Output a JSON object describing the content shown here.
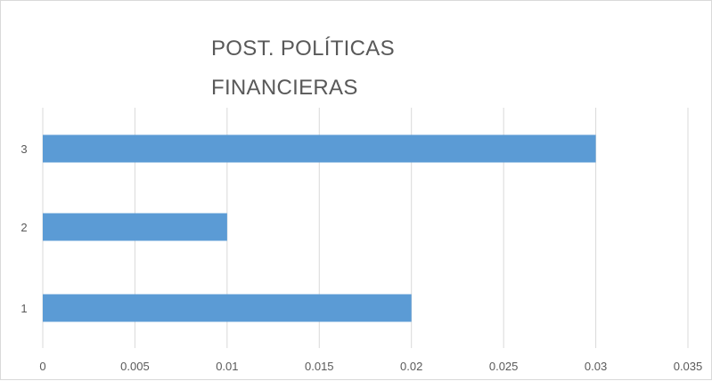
{
  "chart_data": {
    "type": "bar",
    "orientation": "horizontal",
    "title_lines": [
      "POST. POLÍTICAS",
      "FINANCIERAS"
    ],
    "categories": [
      "1",
      "2",
      "3"
    ],
    "values": [
      0.02,
      0.01,
      0.03
    ],
    "xlim": [
      0,
      0.035
    ],
    "x_ticks": [
      "0",
      "0.005",
      "0.01",
      "0.015",
      "0.02",
      "0.025",
      "0.03",
      "0.035"
    ],
    "x_tick_values": [
      0,
      0.005,
      0.01,
      0.015,
      0.02,
      0.025,
      0.03,
      0.035
    ],
    "grid": true,
    "legend": "none",
    "xlabel": "",
    "ylabel": "",
    "colors": {
      "bar": "#5b9bd5",
      "grid": "#d9d9d9",
      "text": "#595959"
    }
  }
}
